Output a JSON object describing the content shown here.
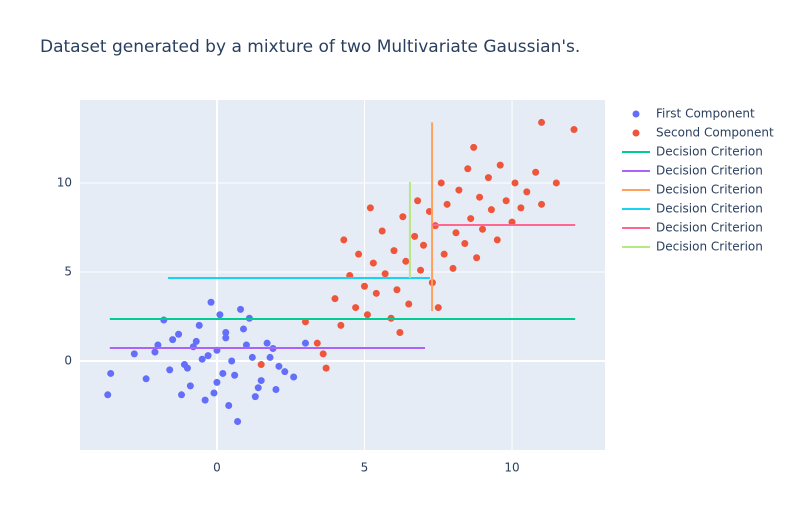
{
  "chart_data": {
    "type": "scatter",
    "title": "Dataset generated by a mixture of two Multivariate Gaussian's.",
    "xlim": [
      -4.64,
      13.15
    ],
    "ylim": [
      -5.0,
      14.66
    ],
    "xticks": [
      0,
      5,
      10
    ],
    "yticks": [
      0,
      5,
      10
    ],
    "grid": true,
    "legend": "right",
    "series": [
      {
        "name": "First Component",
        "mode": "markers",
        "color": "#636efa",
        "x": [
          -2.1,
          -1.5,
          -1.0,
          -0.6,
          -0.3,
          0.0,
          0.3,
          0.6,
          1.0,
          1.4,
          1.8,
          2.3,
          -3.6,
          -2.8,
          -2.4,
          -1.8,
          -1.2,
          -0.8,
          -0.4,
          0.1,
          0.5,
          0.9,
          1.3,
          1.7,
          2.1,
          2.6,
          -1.6,
          -0.9,
          -0.2,
          0.4,
          1.1,
          1.9,
          -1.3,
          -0.5,
          0.2,
          0.8,
          1.5,
          -0.7,
          0.0,
          0.7,
          -1.1,
          0.3,
          1.2,
          -2.0,
          2.0,
          -0.1,
          3.0,
          -3.7
        ],
        "y": [
          0.5,
          1.2,
          -0.4,
          2.0,
          0.3,
          -1.2,
          1.6,
          -0.8,
          0.9,
          -1.5,
          0.2,
          -0.6,
          -0.7,
          0.4,
          -1.0,
          2.3,
          -1.9,
          0.8,
          -2.2,
          2.6,
          0.0,
          1.8,
          -2.0,
          1.0,
          -0.3,
          -0.9,
          -0.5,
          -1.4,
          3.3,
          -2.5,
          2.4,
          0.7,
          1.5,
          0.1,
          -0.7,
          2.9,
          -1.1,
          1.1,
          0.6,
          -3.4,
          -0.2,
          1.3,
          0.2,
          0.9,
          -1.6,
          -1.8,
          1.0,
          -1.9
        ]
      },
      {
        "name": "Second Component",
        "mode": "markers",
        "color": "#EF553B",
        "x": [
          3.4,
          3.7,
          3.0,
          4.0,
          4.2,
          4.5,
          4.7,
          4.8,
          5.0,
          5.1,
          5.3,
          5.4,
          5.6,
          5.7,
          5.9,
          6.0,
          6.1,
          6.3,
          6.4,
          6.5,
          6.7,
          6.8,
          6.9,
          7.0,
          7.2,
          7.3,
          7.4,
          7.6,
          7.7,
          7.8,
          8.0,
          8.1,
          8.2,
          8.4,
          8.5,
          8.6,
          8.8,
          8.9,
          9.0,
          9.2,
          9.3,
          9.5,
          9.6,
          9.8,
          10.0,
          10.1,
          10.3,
          10.5,
          10.8,
          11.0,
          11.5,
          11.0,
          12.1,
          1.5,
          4.3,
          6.2,
          7.5,
          5.2,
          8.7,
          3.6
        ],
        "y": [
          1.0,
          -0.4,
          2.2,
          3.5,
          2.0,
          4.8,
          3.0,
          6.0,
          4.2,
          2.6,
          5.5,
          3.8,
          7.3,
          4.9,
          2.4,
          6.2,
          4.0,
          8.1,
          5.6,
          3.2,
          7.0,
          9.0,
          5.1,
          6.5,
          8.4,
          4.4,
          7.6,
          10.0,
          6.0,
          8.8,
          5.2,
          7.2,
          9.6,
          6.6,
          10.8,
          8.0,
          5.8,
          9.2,
          7.4,
          10.3,
          8.5,
          6.8,
          11.0,
          9.0,
          7.8,
          10.0,
          8.6,
          9.5,
          10.6,
          8.8,
          10.0,
          13.4,
          13.0,
          -0.2,
          6.8,
          1.6,
          3.0,
          8.6,
          12.0,
          0.4
        ]
      },
      {
        "name": "Decision Criterion",
        "mode": "lines",
        "color": "#00cc96",
        "x": [
          -3.63,
          12.14
        ],
        "y": [
          2.36,
          2.36
        ]
      },
      {
        "name": "Decision Criterion",
        "mode": "lines",
        "color": "#ab63fa",
        "x": [
          -3.63,
          7.05
        ],
        "y": [
          0.73,
          0.73
        ]
      },
      {
        "name": "Decision Criterion",
        "mode": "lines",
        "color": "#FFA15A",
        "x": [
          7.29,
          7.29
        ],
        "y": [
          2.8,
          13.4
        ]
      },
      {
        "name": "Decision Criterion",
        "mode": "lines",
        "color": "#19d3f3",
        "x": [
          -1.66,
          7.22
        ],
        "y": [
          4.66,
          4.66
        ]
      },
      {
        "name": "Decision Criterion",
        "mode": "lines",
        "color": "#FF6692",
        "x": [
          7.29,
          12.14
        ],
        "y": [
          7.64,
          7.64
        ]
      },
      {
        "name": "Decision Criterion",
        "mode": "lines",
        "color": "#B6E880",
        "x": [
          6.54,
          6.54
        ],
        "y": [
          4.66,
          10.06
        ]
      }
    ]
  }
}
